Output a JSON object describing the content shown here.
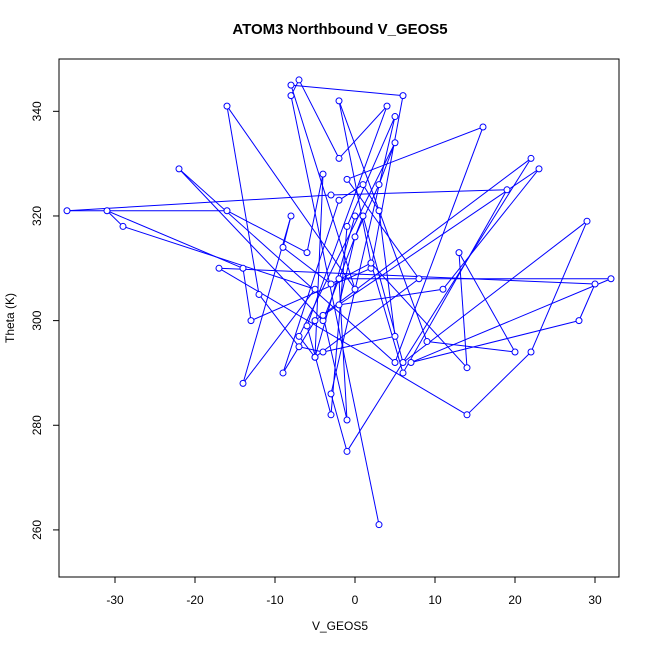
{
  "chart_data": {
    "type": "line",
    "title": "ATOM3 Northbound V_GEOS5",
    "xlabel": "V_GEOS5",
    "ylabel": "Theta (K)",
    "xlim": [
      -37,
      33
    ],
    "ylim": [
      251,
      350
    ],
    "xticks": [
      -30,
      -20,
      -10,
      0,
      10,
      20,
      30
    ],
    "yticks": [
      260,
      280,
      300,
      320,
      340
    ],
    "grid": false,
    "series": [
      {
        "color": "#0000ff",
        "markers": "open-circle",
        "points": [
          [
            3,
            261
          ],
          [
            -8,
            343
          ],
          [
            -7,
            346
          ],
          [
            -2,
            331
          ],
          [
            4,
            341
          ],
          [
            -6,
            299
          ],
          [
            -3,
            282
          ],
          [
            -1,
            318
          ],
          [
            5,
            339
          ],
          [
            -3,
            286
          ],
          [
            -1,
            275
          ],
          [
            22,
            331
          ],
          [
            -5,
            300
          ],
          [
            -9,
            290
          ],
          [
            -2,
            323
          ],
          [
            1,
            326
          ],
          [
            3,
            321
          ],
          [
            5,
            297
          ],
          [
            -4,
            294
          ],
          [
            -7,
            295
          ],
          [
            -12,
            305
          ],
          [
            -16,
            341
          ],
          [
            0,
            306
          ],
          [
            -8,
            345
          ],
          [
            6,
            343
          ],
          [
            2,
            310
          ],
          [
            -13,
            300
          ],
          [
            -14,
            310
          ],
          [
            -31,
            321
          ],
          [
            -29,
            318
          ],
          [
            -5,
            306
          ],
          [
            -14,
            288
          ],
          [
            -8,
            320
          ],
          [
            -9,
            314
          ],
          [
            -3,
            307
          ],
          [
            2,
            311
          ],
          [
            14,
            291
          ],
          [
            13,
            313
          ],
          [
            20,
            294
          ],
          [
            9,
            296
          ],
          [
            -2,
            342
          ],
          [
            2,
            311
          ],
          [
            6,
            290
          ],
          [
            19,
            325
          ],
          [
            -3,
            324
          ],
          [
            -36,
            321
          ],
          [
            -16,
            321
          ],
          [
            -6,
            313
          ],
          [
            -4,
            328
          ],
          [
            -5,
            293
          ],
          [
            8,
            308
          ],
          [
            -1,
            327
          ],
          [
            16,
            337
          ],
          [
            5,
            292
          ],
          [
            -22,
            329
          ],
          [
            -4,
            300
          ],
          [
            1,
            320
          ],
          [
            6,
            292
          ],
          [
            29,
            319
          ],
          [
            22,
            294
          ],
          [
            14,
            282
          ],
          [
            -17,
            310
          ],
          [
            30,
            307
          ],
          [
            28,
            300
          ],
          [
            7,
            292
          ],
          [
            32,
            308
          ],
          [
            -2,
            308
          ],
          [
            -1,
            281
          ],
          [
            -4,
            301
          ],
          [
            23,
            329
          ],
          [
            11,
            306
          ],
          [
            -2,
            303
          ],
          [
            0,
            316
          ],
          [
            3,
            326
          ],
          [
            5,
            334
          ],
          [
            -7,
            297
          ],
          [
            -5,
            293
          ],
          [
            0,
            320
          ]
        ]
      }
    ]
  }
}
